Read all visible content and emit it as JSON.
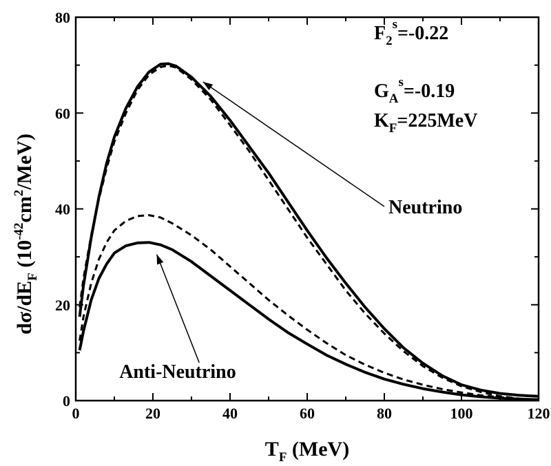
{
  "chart_data": {
    "type": "line",
    "xlabel": {
      "main": "T",
      "sub": "F",
      "rest": " (MeV)"
    },
    "ylabel": {
      "pre": "dσ/dE",
      "sub": "F",
      "mid": " (10",
      "sup1": "-42",
      "mid2": "cm",
      "sup2": "2",
      "post": "/MeV)"
    },
    "xlim": [
      0,
      120
    ],
    "ylim": [
      0,
      80
    ],
    "xticks": [
      0,
      20,
      40,
      60,
      80,
      100,
      120
    ],
    "yticks": [
      0,
      20,
      40,
      60,
      80
    ],
    "grid": false,
    "parameters": [
      {
        "main": "F",
        "sub": "2",
        "sup": "s",
        "value": "=-0.22"
      },
      {
        "main": "G",
        "sub": "A",
        "sup": "s",
        "value": "=-0.19"
      },
      {
        "main": "K",
        "sub": "F",
        "sup": "",
        "value": "=225MeV"
      }
    ],
    "annotations": [
      {
        "text": "Neutrino",
        "label_at": [
          80,
          40.5
        ],
        "arrow_to": [
          33,
          66.5
        ]
      },
      {
        "text": "Anti-Neutrino",
        "label_at": [
          32,
          6.2
        ],
        "arrow_to": [
          21,
          30.5
        ]
      }
    ],
    "series": [
      {
        "style": "solid",
        "x": [
          1,
          2,
          4,
          6,
          8,
          10,
          13,
          16,
          19,
          22,
          24,
          26,
          30,
          35,
          40,
          45,
          50,
          55,
          60,
          65,
          70,
          75,
          80,
          85,
          90,
          95,
          100,
          105,
          110,
          115,
          120
        ],
        "y": [
          17.5,
          24,
          34,
          42.5,
          49.5,
          55,
          61,
          65.5,
          68.6,
          70.2,
          70.3,
          69.8,
          67.5,
          63.5,
          58.5,
          53,
          47.5,
          41.5,
          35.5,
          29.8,
          24.5,
          19.5,
          15,
          11,
          7.8,
          5.2,
          3.3,
          2.2,
          1.5,
          1.1,
          0.9
        ]
      },
      {
        "style": "dashed",
        "x": [
          1,
          2,
          4,
          6,
          8,
          10,
          13,
          16,
          19,
          22,
          24,
          26,
          30,
          35,
          40,
          45,
          50,
          55,
          60,
          65,
          70,
          75,
          80,
          85,
          90,
          95,
          100,
          105,
          110,
          115,
          120
        ],
        "y": [
          19.5,
          25.5,
          34.5,
          42,
          48.5,
          54,
          60,
          64.8,
          68,
          69.6,
          69.9,
          69.5,
          67,
          62.8,
          57.5,
          52,
          46,
          40,
          34,
          28.5,
          23,
          18.2,
          14,
          10.3,
          7.2,
          4.8,
          3,
          1.8,
          0.9,
          0.4,
          0.2
        ]
      },
      {
        "style": "dashed",
        "x": [
          1,
          2,
          4,
          6,
          8,
          10,
          13,
          16,
          19,
          22,
          25,
          30,
          35,
          40,
          45,
          50,
          55,
          60,
          65,
          70,
          75,
          80,
          85,
          90,
          95,
          100,
          105,
          110,
          115,
          120
        ],
        "y": [
          12.5,
          17.5,
          24.5,
          29.5,
          33,
          35.5,
          37.5,
          38.5,
          38.7,
          38.2,
          37,
          34.5,
          31.5,
          28,
          24.5,
          21,
          17.8,
          14.8,
          12,
          9.5,
          7.5,
          5.8,
          4.4,
          3.3,
          2.4,
          1.7,
          1.1,
          0.7,
          0.4,
          0.2
        ]
      },
      {
        "style": "solid",
        "x": [
          1,
          2,
          4,
          6,
          8,
          10,
          13,
          16,
          19,
          22,
          25,
          30,
          35,
          40,
          45,
          50,
          55,
          60,
          65,
          70,
          75,
          80,
          85,
          90,
          95,
          100,
          105,
          110,
          115,
          120
        ],
        "y": [
          10.5,
          14.5,
          21,
          25.5,
          28.5,
          30.8,
          32.3,
          32.9,
          33,
          32.5,
          31.5,
          29,
          26,
          23,
          20,
          17,
          14.2,
          11.8,
          9.5,
          7.6,
          5.9,
          4.5,
          3.4,
          2.5,
          1.8,
          1.2,
          0.8,
          0.5,
          0.3,
          0.2
        ]
      }
    ]
  }
}
